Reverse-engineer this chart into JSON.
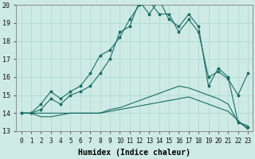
{
  "xlabel": "Humidex (Indice chaleur)",
  "ylabel": "",
  "background_color": "#ceeae4",
  "grid_color": "#a8d8d0",
  "line_color": "#1a6e65",
  "xlim": [
    -0.5,
    23.5
  ],
  "ylim": [
    13,
    20
  ],
  "xtick_labels": [
    "0",
    "1",
    "2",
    "3",
    "4",
    "5",
    "6",
    "7",
    "8",
    "9",
    "10",
    "11",
    "12",
    "13",
    "14",
    "15",
    "16",
    "17",
    "18",
    "19",
    "20",
    "21",
    "22",
    "23"
  ],
  "ytick_labels": [
    "13",
    "14",
    "15",
    "16",
    "17",
    "18",
    "19",
    "20"
  ],
  "series": {
    "line_high1": [
      14.0,
      14.0,
      14.5,
      15.2,
      14.8,
      15.2,
      15.5,
      16.2,
      17.2,
      17.5,
      18.2,
      19.2,
      20.0,
      20.2,
      19.5,
      19.5,
      18.5,
      19.2,
      18.5,
      16.0,
      16.3,
      15.9,
      15.0,
      16.2
    ],
    "line_high2": [
      14.0,
      14.0,
      14.2,
      14.8,
      14.5,
      15.0,
      15.2,
      15.5,
      16.2,
      17.0,
      18.5,
      18.8,
      20.2,
      19.5,
      20.3,
      19.2,
      18.8,
      19.5,
      18.8,
      15.5,
      16.5,
      16.0,
      13.5,
      13.2
    ],
    "line_flat1": [
      14.0,
      14.0,
      14.0,
      14.0,
      14.0,
      14.0,
      14.0,
      14.0,
      14.0,
      14.2,
      14.3,
      14.5,
      14.7,
      14.9,
      15.1,
      15.3,
      15.5,
      15.4,
      15.2,
      15.0,
      14.8,
      14.5,
      13.5,
      13.3
    ],
    "line_flat2": [
      14.0,
      14.0,
      13.8,
      13.8,
      13.9,
      14.0,
      14.0,
      14.0,
      14.0,
      14.1,
      14.2,
      14.3,
      14.4,
      14.5,
      14.6,
      14.7,
      14.8,
      14.9,
      14.7,
      14.5,
      14.3,
      14.1,
      13.6,
      13.1
    ]
  },
  "font_size_tick": 5.5,
  "font_size_xlabel": 7
}
